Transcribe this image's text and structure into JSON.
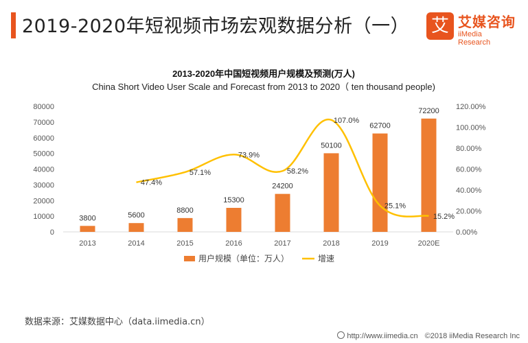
{
  "header": {
    "title": "2019-2020年短视频市场宏观数据分析（一）"
  },
  "logo": {
    "mark": "艾",
    "name_cn": "艾媒咨询",
    "name_en": "iiMedia Research"
  },
  "colors": {
    "accent": "#e8541e",
    "bar": "#ed7d31",
    "line": "#ffc000"
  },
  "chart_data": {
    "type": "bar",
    "title": "2013-2020年中国短视频用户规模及预测(万人)",
    "subtitle": "China Short Video User Scale and Forecast from 2013 to 2020（ ten thousand people)",
    "categories": [
      "2013",
      "2014",
      "2015",
      "2016",
      "2017",
      "2018",
      "2019",
      "2020E"
    ],
    "series": [
      {
        "name": "用户规模（单位：万人）",
        "type": "bar",
        "axis": "left",
        "values": [
          3800,
          5600,
          8800,
          15300,
          24200,
          50100,
          62700,
          72200
        ],
        "labels": [
          "3800",
          "5600",
          "8800",
          "15300",
          "24200",
          "50100",
          "62700",
          "72200"
        ]
      },
      {
        "name": "增速",
        "type": "line",
        "axis": "right",
        "values": [
          null,
          47.4,
          57.1,
          73.9,
          58.2,
          107.0,
          25.1,
          15.2
        ],
        "labels": [
          "",
          "47.4%",
          "57.1%",
          "73.9%",
          "58.2%",
          "107.0%",
          "25.1%",
          "15.2%"
        ]
      }
    ],
    "y_left": {
      "min": 0,
      "max": 80000,
      "ticks": [
        "0",
        "10000",
        "20000",
        "30000",
        "40000",
        "50000",
        "60000",
        "70000",
        "80000"
      ]
    },
    "y_right": {
      "min": 0,
      "max": 120,
      "ticks": [
        "0.00%",
        "20.00%",
        "40.00%",
        "60.00%",
        "80.00%",
        "100.00%",
        "120.00%"
      ]
    },
    "legend": {
      "position": "bottom",
      "items": [
        "用户规模（单位：万人）",
        "增速"
      ]
    }
  },
  "footer": {
    "source": "数据来源：艾媒数据中心（data.iimedia.cn）",
    "url": "http://www.iimedia.cn",
    "copyright": "©2018  iiMedia Research  Inc"
  }
}
